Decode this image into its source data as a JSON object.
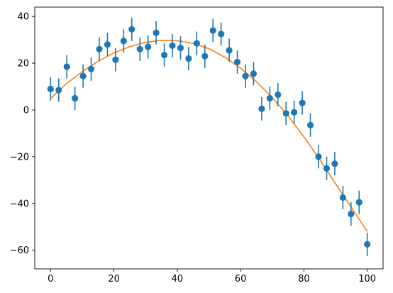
{
  "chart_data": {
    "type": "scatter",
    "title": "",
    "xlabel": "",
    "ylabel": "",
    "xlim": [
      -5,
      105
    ],
    "ylim": [
      -68,
      44
    ],
    "grid": false,
    "legend": null,
    "x_ticks": [
      0,
      20,
      40,
      60,
      80,
      100
    ],
    "x_tick_labels": [
      "0",
      "20",
      "40",
      "60",
      "80",
      "100"
    ],
    "y_ticks": [
      -60,
      -40,
      -20,
      0,
      20,
      40
    ],
    "y_tick_labels": [
      "−60",
      "−40",
      "−20",
      "0",
      "20",
      "40"
    ],
    "series": [
      {
        "type": "errorbar",
        "color": "#1f77b4",
        "x": [
          0,
          2.56,
          5.13,
          7.69,
          10.26,
          12.82,
          15.38,
          17.95,
          20.51,
          23.08,
          25.64,
          28.21,
          30.77,
          33.33,
          35.9,
          38.46,
          41.03,
          43.59,
          46.15,
          48.72,
          51.28,
          53.85,
          56.41,
          58.97,
          61.54,
          64.1,
          66.67,
          69.23,
          71.79,
          74.36,
          76.92,
          79.49,
          82.05,
          84.62,
          87.18,
          89.74,
          92.31,
          94.87,
          97.44,
          100
        ],
        "y": [
          9,
          8.5,
          18.5,
          5,
          14.5,
          17.5,
          26,
          28,
          21.5,
          29.5,
          34.5,
          26,
          27,
          33,
          23.5,
          27.5,
          26.5,
          22,
          28.5,
          23,
          34,
          32.5,
          25.5,
          20.5,
          14.5,
          15.5,
          0.5,
          5,
          6.5,
          -1.5,
          -1,
          3,
          -6.5,
          -20,
          -25,
          -23,
          -37.5,
          -44.5,
          -39.5,
          -57.5
        ],
        "yerr": 5
      },
      {
        "type": "line",
        "color": "#ff7f0e",
        "x": [
          0,
          5,
          10,
          15,
          20,
          25,
          30,
          35,
          40,
          45,
          50,
          55,
          60,
          65,
          70,
          75,
          80,
          85,
          90,
          95,
          100
        ],
        "y": [
          4.9,
          11.2,
          16.4,
          20.8,
          24.4,
          27.1,
          28.9,
          29.8,
          29.6,
          28.5,
          26.2,
          22.6,
          17.9,
          12.1,
          5.3,
          -2.6,
          -11.5,
          -21.2,
          -31.6,
          -41.7,
          -52
        ]
      }
    ]
  }
}
